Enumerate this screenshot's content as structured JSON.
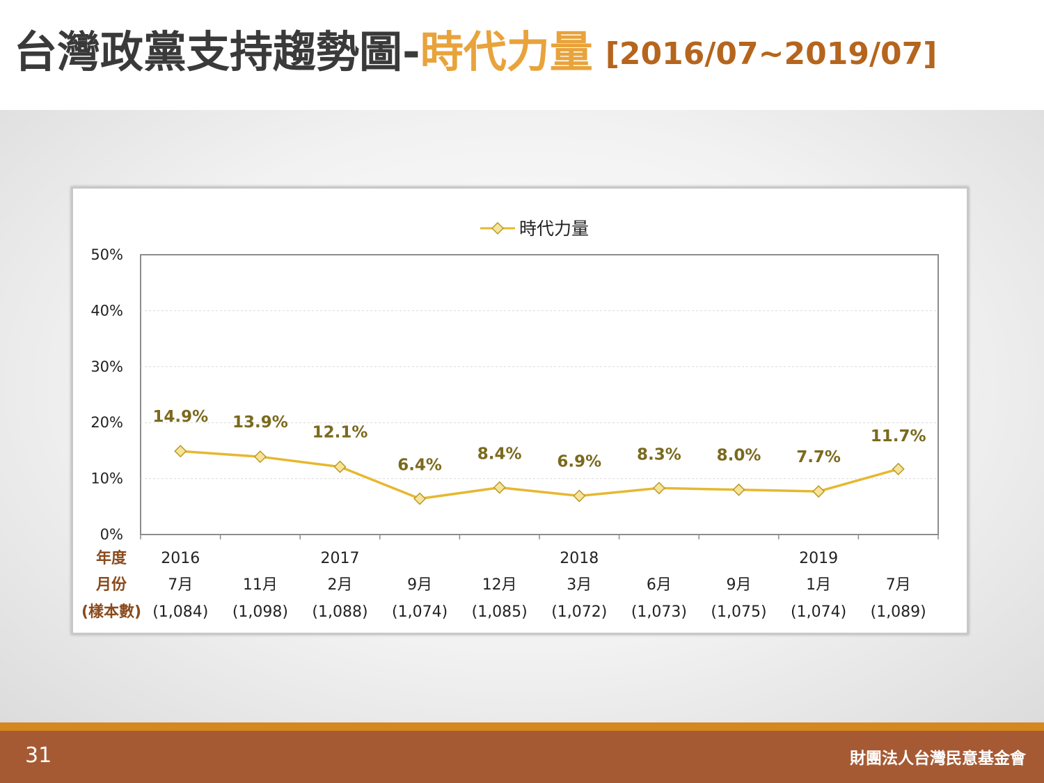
{
  "title": {
    "main": "台灣政黨支持趨勢圖-",
    "accent": "時代力量",
    "range": "[2016/07~2019/07]"
  },
  "colors": {
    "series_line": "#e6b830",
    "marker_fill": "#f7e49a",
    "marker_stroke": "#b89a2a",
    "data_label": "#7a6a1e",
    "row_label": "#8b4a1c",
    "accent_title": "#e8a33b",
    "footer": "#a65a33",
    "footer_line": "#d4881f"
  },
  "footer": {
    "page_number": "31",
    "organization": "財團法人台灣民意基金會"
  },
  "chart_data": {
    "type": "line",
    "legend": {
      "label": "時代力量",
      "position": "top-center"
    },
    "ylim": [
      0,
      50
    ],
    "yticks": [
      "0%",
      "10%",
      "20%",
      "30%",
      "40%",
      "50%"
    ],
    "grid": true,
    "row_labels": {
      "year": "年度",
      "month": "月份",
      "sample": "(樣本數)"
    },
    "categories": [
      {
        "year": "2016",
        "month": "7月",
        "sample": "(1,084)"
      },
      {
        "year": "",
        "month": "11月",
        "sample": "(1,098)"
      },
      {
        "year": "2017",
        "month": "2月",
        "sample": "(1,088)"
      },
      {
        "year": "",
        "month": "9月",
        "sample": "(1,074)"
      },
      {
        "year": "",
        "month": "12月",
        "sample": "(1,085)"
      },
      {
        "year": "2018",
        "month": "3月",
        "sample": "(1,072)"
      },
      {
        "year": "",
        "month": "6月",
        "sample": "(1,073)"
      },
      {
        "year": "",
        "month": "9月",
        "sample": "(1,075)"
      },
      {
        "year": "2019",
        "month": "1月",
        "sample": "(1,074)"
      },
      {
        "year": "",
        "month": "7月",
        "sample": "(1,089)"
      }
    ],
    "series": [
      {
        "name": "時代力量",
        "values": [
          14.9,
          13.9,
          12.1,
          6.4,
          8.4,
          6.9,
          8.3,
          8.0,
          7.7,
          11.7
        ],
        "value_labels": [
          "14.9%",
          "13.9%",
          "12.1%",
          "6.4%",
          "8.4%",
          "6.9%",
          "8.3%",
          "8.0%",
          "7.7%",
          "11.7%"
        ]
      }
    ]
  }
}
